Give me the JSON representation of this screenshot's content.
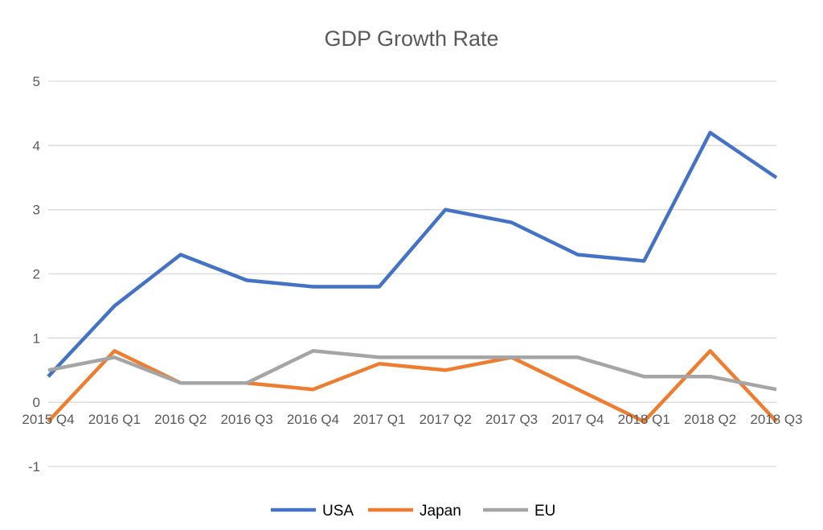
{
  "chart_data": {
    "type": "line",
    "title": "GDP Growth Rate",
    "categories": [
      "2015 Q4",
      "2016 Q1",
      "2016 Q2",
      "2016 Q3",
      "2016 Q4",
      "2017 Q1",
      "2017 Q2",
      "2017 Q3",
      "2017 Q4",
      "2018 Q1",
      "2018 Q2",
      "2018 Q3"
    ],
    "series": [
      {
        "name": "USA",
        "color": "#4472c4",
        "values": [
          0.4,
          1.5,
          2.3,
          1.9,
          1.8,
          1.8,
          3.0,
          2.8,
          2.3,
          2.2,
          4.2,
          3.5
        ]
      },
      {
        "name": "Japan",
        "color": "#ed7d31",
        "values": [
          -0.3,
          0.8,
          0.3,
          0.3,
          0.2,
          0.6,
          0.5,
          0.7,
          0.2,
          -0.3,
          0.8,
          -0.3
        ]
      },
      {
        "name": "EU",
        "color": "#a5a5a5",
        "values": [
          0.5,
          0.7,
          0.3,
          0.3,
          0.8,
          0.7,
          0.7,
          0.7,
          0.7,
          0.4,
          0.4,
          0.2
        ]
      }
    ],
    "ylim": [
      -1,
      5
    ],
    "yticks": [
      "-1",
      "0",
      "1",
      "2",
      "3",
      "4",
      "5"
    ],
    "grid": true,
    "legend": "bottom",
    "xlabel": "",
    "ylabel": ""
  }
}
